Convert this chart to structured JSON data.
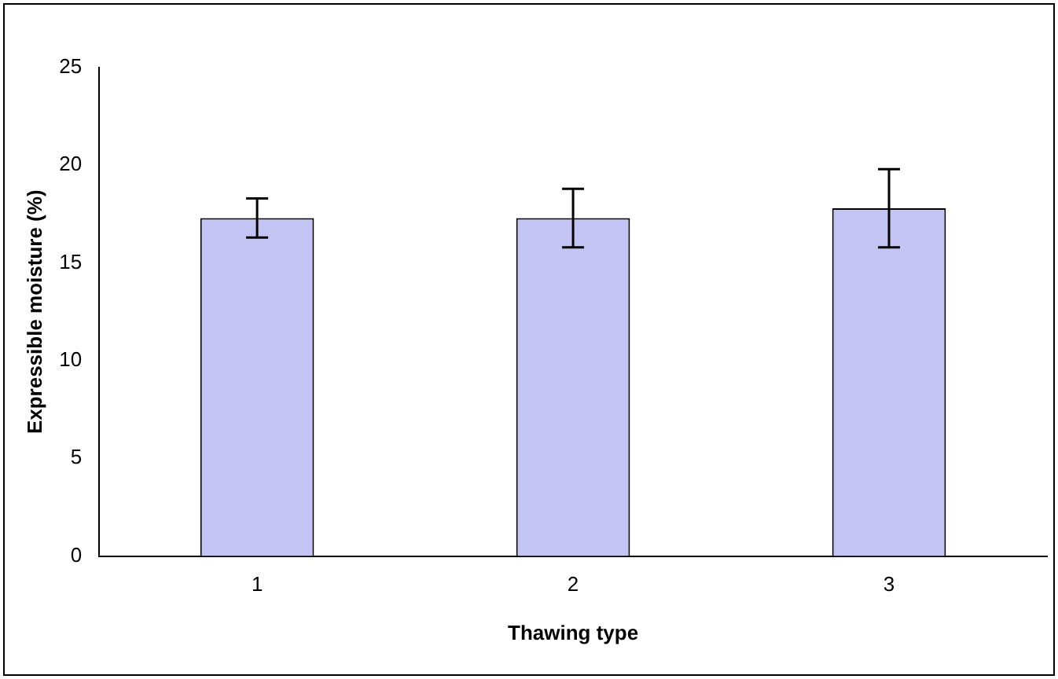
{
  "chart_data": {
    "type": "bar",
    "xlabel": "Thawing type",
    "ylabel": "Expressible moisture (%)",
    "categories": [
      "1",
      "2",
      "3"
    ],
    "series": [
      {
        "color": "#c4c4f4",
        "values": [
          17.3,
          17.3,
          17.8
        ],
        "errors": [
          1.0,
          1.5,
          2.0
        ]
      }
    ],
    "ylim": [
      0,
      25
    ],
    "yticks": [
      0,
      5,
      10,
      15,
      20,
      25
    ],
    "grid": false,
    "legend": false
  }
}
